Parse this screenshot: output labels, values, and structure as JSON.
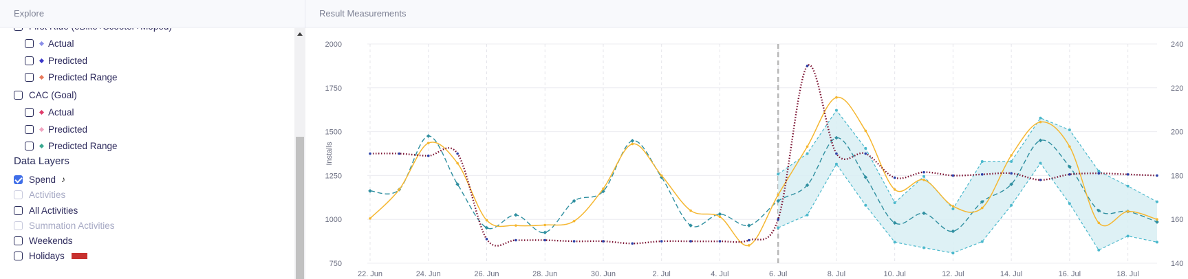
{
  "left_panel": {
    "title": "Explore",
    "items": [
      {
        "label": "First Ride (eBike+Scooter+Moped)",
        "checked": false,
        "indent": 0
      },
      {
        "label": "Actual",
        "checked": false,
        "indent": 1,
        "marker_color": "#8b8fe8"
      },
      {
        "label": "Predicted",
        "checked": false,
        "indent": 1,
        "marker_color": "#3b37c9"
      },
      {
        "label": "Predicted Range",
        "checked": false,
        "indent": 1,
        "marker_color": "#e8795b"
      },
      {
        "label": "CAC (Goal)",
        "checked": false,
        "indent": 0
      },
      {
        "label": "Actual",
        "checked": false,
        "indent": 1,
        "marker_color": "#e03b6a"
      },
      {
        "label": "Predicted",
        "checked": false,
        "indent": 1,
        "marker_color": "#f0a4c0"
      },
      {
        "label": "Predicted Range",
        "checked": false,
        "indent": 1,
        "marker_color": "#3aa890"
      }
    ],
    "data_layers_title": "Data Layers",
    "layers": [
      {
        "label": "Spend",
        "checked": true,
        "disabled": false,
        "icon": "tiktok-icon"
      },
      {
        "label": "Activities",
        "checked": false,
        "disabled": true
      },
      {
        "label": "All Activities",
        "checked": false,
        "disabled": false
      },
      {
        "label": "Summation Activities",
        "checked": false,
        "disabled": true
      },
      {
        "label": "Weekends",
        "checked": false,
        "disabled": false
      },
      {
        "label": "Holidays",
        "checked": false,
        "disabled": false,
        "swatch_color": "#c7312f"
      }
    ]
  },
  "right_panel": {
    "title": "Result Measurements"
  },
  "chart_data": {
    "type": "line",
    "ylabel": "Installs",
    "ylim": [
      750,
      2000
    ],
    "y_ticks": [
      "750",
      "1000",
      "1250",
      "1500",
      "1750",
      "2000"
    ],
    "y2lim": [
      140,
      240
    ],
    "y2_ticks": [
      "140",
      "160",
      "180",
      "200",
      "220",
      "240"
    ],
    "x_tick_labels": [
      "22. Jun",
      "24. Jun",
      "26. Jun",
      "28. Jun",
      "30. Jun",
      "2. Jul",
      "4. Jul",
      "6. Jul",
      "8. Jul",
      "10. Jul",
      "12. Jul",
      "14. Jul",
      "16. Jul",
      "18. Jul"
    ],
    "forecast_start_index": 14,
    "grid": true,
    "colors": {
      "actual": "#f5b731",
      "predicted": "#2f8fa0",
      "range_fill": "#d8eef3",
      "range_line": "#4ab8cc",
      "spend": "#7a1030",
      "spend_dot": "#2a3fa8",
      "divider": "#b8b8b8"
    },
    "series": [
      {
        "role": "actual",
        "values": [
          1005,
          1170,
          1435,
          1320,
          995,
          965,
          968,
          990,
          1175,
          1430,
          1250,
          1050,
          1015,
          852,
          1140,
          1415,
          1695,
          1505,
          1170,
          1225,
          1075,
          1065,
          1365,
          1555,
          1415,
          980,
          1045,
          1000
        ]
      },
      {
        "role": "predicted",
        "values": [
          1162,
          1170,
          1475,
          1200,
          952,
          1025,
          925,
          1105,
          1160,
          1448,
          1240,
          965,
          1030,
          965,
          1105,
          1195,
          1465,
          1240,
          980,
          1035,
          932,
          1100,
          1200,
          1450,
          1300,
          1050,
          1045,
          985
        ]
      },
      {
        "role": "range_upper",
        "values": [
          null,
          null,
          null,
          null,
          null,
          null,
          null,
          null,
          null,
          null,
          null,
          null,
          null,
          null,
          1258,
          1375,
          1622,
          1405,
          1095,
          1245,
          1060,
          1330,
          1330,
          1578,
          1510,
          1275,
          1190,
          1100
        ]
      },
      {
        "role": "range_lower",
        "values": [
          null,
          null,
          null,
          null,
          null,
          null,
          null,
          null,
          null,
          null,
          null,
          null,
          null,
          null,
          952,
          1025,
          1315,
          1080,
          870,
          838,
          808,
          873,
          1080,
          1320,
          1090,
          825,
          905,
          870
        ]
      },
      {
        "role": "spend",
        "axis": "right",
        "values": [
          190,
          190,
          189,
          190,
          151,
          150.5,
          150.5,
          150,
          150,
          149,
          150,
          150,
          150,
          150.5,
          160,
          230,
          190,
          190,
          179,
          181.5,
          180,
          180.5,
          181,
          178,
          180.5,
          181,
          180.5,
          180
        ]
      }
    ]
  }
}
